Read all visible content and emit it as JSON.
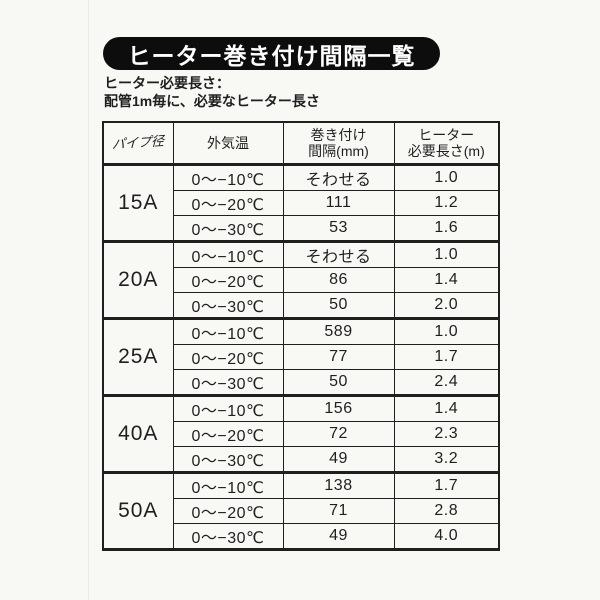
{
  "page": {
    "title": "ヒーター巻き付け間隔一覧",
    "subtitle_line1": "ヒーター必要長さ：",
    "subtitle_line2": "配管1m毎に、必要なヒーター長さ"
  },
  "table": {
    "headers": {
      "pipe": "パイプ径",
      "temp": "外気温",
      "interval_line1": "巻き付け",
      "interval_line2": "間隔(mm)",
      "length_line1": "ヒーター",
      "length_line2": "必要長さ(m)"
    },
    "groups": [
      {
        "pipe": "15A",
        "rows": [
          {
            "temp": "0～−10℃",
            "interval": "そわせる",
            "length": "1.0"
          },
          {
            "temp": "0～−20℃",
            "interval": "111",
            "length": "1.2"
          },
          {
            "temp": "0～−30℃",
            "interval": "53",
            "length": "1.6"
          }
        ]
      },
      {
        "pipe": "20A",
        "rows": [
          {
            "temp": "0～−10℃",
            "interval": "そわせる",
            "length": "1.0"
          },
          {
            "temp": "0～−20℃",
            "interval": "86",
            "length": "1.4"
          },
          {
            "temp": "0～−30℃",
            "interval": "50",
            "length": "2.0"
          }
        ]
      },
      {
        "pipe": "25A",
        "rows": [
          {
            "temp": "0～−10℃",
            "interval": "589",
            "length": "1.0"
          },
          {
            "temp": "0～−20℃",
            "interval": "77",
            "length": "1.7"
          },
          {
            "temp": "0～−30℃",
            "interval": "50",
            "length": "2.4"
          }
        ]
      },
      {
        "pipe": "40A",
        "rows": [
          {
            "temp": "0～−10℃",
            "interval": "156",
            "length": "1.4"
          },
          {
            "temp": "0～−20℃",
            "interval": "72",
            "length": "2.3"
          },
          {
            "temp": "0～−30℃",
            "interval": "49",
            "length": "3.2"
          }
        ]
      },
      {
        "pipe": "50A",
        "rows": [
          {
            "temp": "0～−10℃",
            "interval": "138",
            "length": "1.7"
          },
          {
            "temp": "0～−20℃",
            "interval": "71",
            "length": "2.8"
          },
          {
            "temp": "0～−30℃",
            "interval": "49",
            "length": "4.0"
          }
        ]
      }
    ]
  },
  "colors": {
    "ink": "#1f1f1f",
    "paper": "#f8f8f5",
    "pill_bg": "#0d0d0d",
    "pill_text": "#ffffff"
  }
}
